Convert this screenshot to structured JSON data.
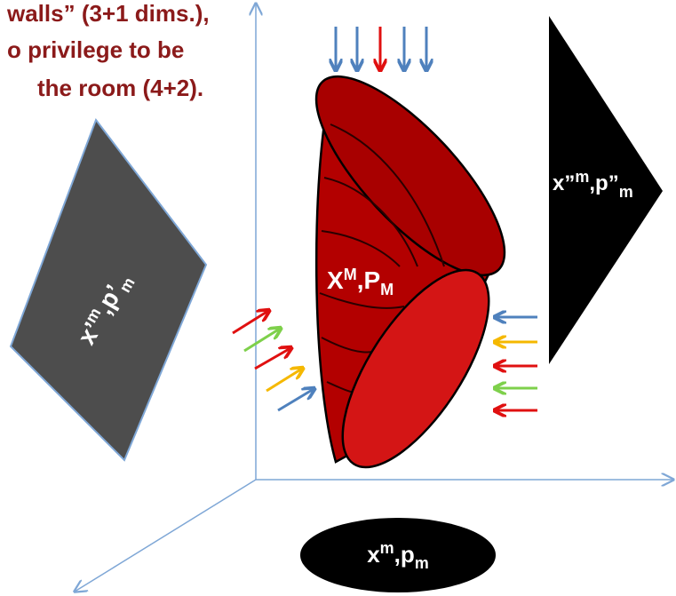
{
  "caption": {
    "lines": [
      "walls” (3+1 dims.),",
      "o privilege to be",
      "the room (4+2)."
    ]
  },
  "labels": {
    "left": {
      "x": "x’",
      "x_sup": "m",
      "p": ",p’",
      "p_sub": "m"
    },
    "right": {
      "x": "x”",
      "x_sup": "m",
      "p": ",p”",
      "p_sub": "m"
    },
    "center": {
      "x": "X",
      "x_sup": "M",
      "p": ",P",
      "p_sub": "M"
    },
    "bottom": {
      "x": "x",
      "x_sup": "m",
      "p": ",p",
      "p_sub": "m"
    }
  }
}
